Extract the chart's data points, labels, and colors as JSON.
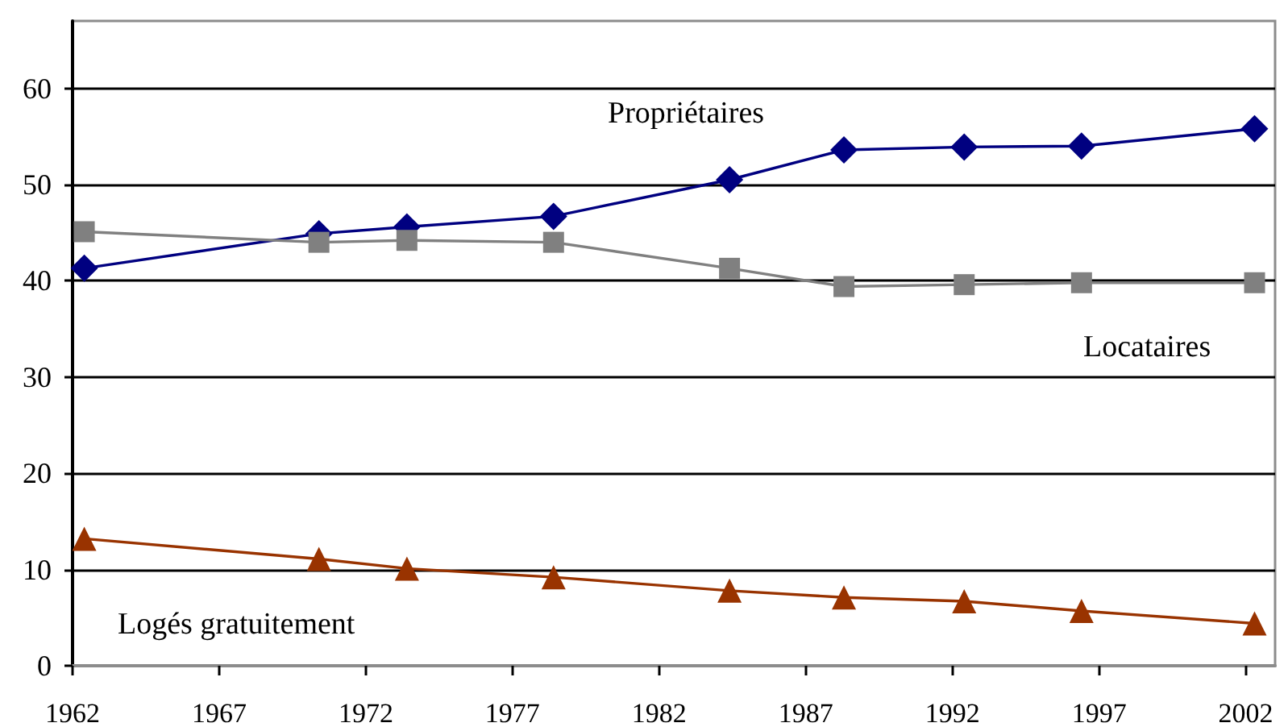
{
  "chart_data": {
    "type": "line",
    "x": [
      1962.4,
      1970.4,
      1973.4,
      1978.4,
      1984.4,
      1988.3,
      1992.4,
      1996.4,
      2002.3
    ],
    "series": [
      {
        "name": "Propriétaires",
        "color": "#000080",
        "marker": "diamond",
        "values": [
          41.3,
          44.9,
          45.6,
          46.7,
          50.5,
          53.6,
          53.9,
          54.0,
          55.8
        ]
      },
      {
        "name": "Locataires",
        "color": "#808080",
        "marker": "square",
        "values": [
          45.1,
          44.0,
          44.2,
          44.0,
          41.3,
          39.4,
          39.6,
          39.8,
          39.8
        ]
      },
      {
        "name": "Logés gratuitement",
        "color": "#993300",
        "marker": "triangle",
        "values": [
          13.2,
          11.1,
          10.1,
          9.2,
          7.8,
          7.1,
          6.7,
          5.7,
          4.4
        ]
      }
    ],
    "xlim": [
      1962,
      2003
    ],
    "xticks": [
      1962,
      1967,
      1972,
      1977,
      1982,
      1987,
      1992,
      1997,
      2002
    ],
    "ylim": [
      0,
      67
    ],
    "yticks": [
      0,
      10,
      20,
      30,
      40,
      50,
      60
    ],
    "grid": "y",
    "line_style": "solid"
  }
}
